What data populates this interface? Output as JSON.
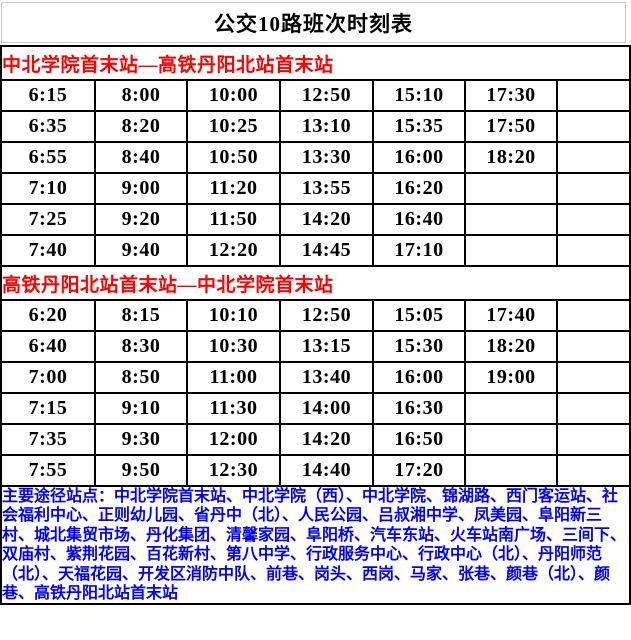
{
  "page": {
    "title": "公交10路班次时刻表"
  },
  "colors": {
    "section_header_red": "#FF0000",
    "stops_text_blue": "#0000FF",
    "table_border_black": "#000000",
    "title_box_border_gray": "#C5C9D1"
  },
  "timetable": {
    "columns": 7,
    "sections": [
      {
        "header": "中北学院首末站—高铁丹阳北站首末站",
        "rows": [
          [
            "6:15",
            "8:00",
            "10:00",
            "12:50",
            "15:10",
            "17:30",
            ""
          ],
          [
            "6:35",
            "8:20",
            "10:25",
            "13:10",
            "15:35",
            "17:50",
            ""
          ],
          [
            "6:55",
            "8:40",
            "10:50",
            "13:30",
            "16:00",
            "18:20",
            ""
          ],
          [
            "7:10",
            "9:00",
            "11:20",
            "13:55",
            "16:20",
            "",
            ""
          ],
          [
            "7:25",
            "9:20",
            "11:50",
            "14:20",
            "16:40",
            "",
            ""
          ],
          [
            "7:40",
            "9:40",
            "12:20",
            "14:45",
            "17:10",
            "",
            ""
          ]
        ]
      },
      {
        "header": "高铁丹阳北站首末站—中北学院首末站",
        "rows": [
          [
            "6:20",
            "8:15",
            "10:10",
            "12:50",
            "15:05",
            "17:40",
            ""
          ],
          [
            "6:40",
            "8:30",
            "10:30",
            "13:15",
            "15:30",
            "18:20",
            ""
          ],
          [
            "7:00",
            "8:50",
            "11:00",
            "13:40",
            "16:00",
            "19:00",
            ""
          ],
          [
            "7:15",
            "9:10",
            "11:30",
            "14:00",
            "16:30",
            "",
            ""
          ],
          [
            "7:35",
            "9:30",
            "12:00",
            "14:20",
            "16:50",
            "",
            ""
          ],
          [
            "7:55",
            "9:50",
            "12:30",
            "14:40",
            "17:20",
            "",
            ""
          ]
        ]
      }
    ],
    "stops_note": "主要途径站点：中北学院首末站、中北学院（西）、中北学院、锦湖路、西门客运站、社会福利中心、正则幼儿园、省丹中（北）、人民公园、吕叔湘中学、凤美园、阜阳新三村、城北集贸市场、丹化集团、清馨家园、阜阳桥、汽车东站、火车站南广场、三间下、双庙村、紫荆花园、百花新村、第八中学、行政服务中心、行政中心（北）、丹阳师范（北）、天福花园、开发区消防中队、前巷、岗头、西岗、马家、张巷、颜巷（北）、颜巷、高铁丹阳北站首末站"
  }
}
